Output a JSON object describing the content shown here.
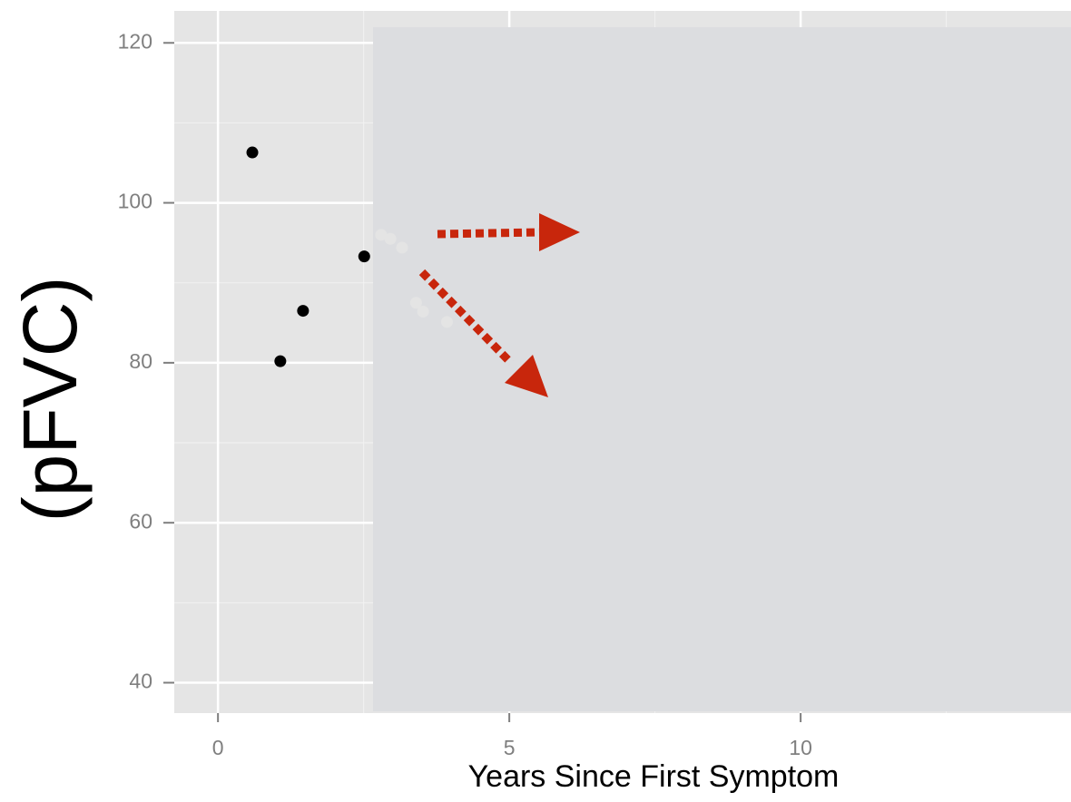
{
  "chart_data": {
    "type": "scatter",
    "x_label": "Years Since First Symptom",
    "y_label": "(pFVC)",
    "series": [
      {
        "color": "#000000",
        "x": [
          0.59,
          1.07,
          1.46,
          2.51
        ],
        "values": [
          106.3,
          80.2,
          86.5,
          93.3
        ]
      },
      {
        "color": "#e4e4e4",
        "x": [
          2.8,
          2.96,
          3.16,
          3.4,
          3.52,
          3.93
        ],
        "values": [
          96.0,
          95.5,
          94.4,
          87.5,
          86.4,
          85.1
        ]
      }
    ],
    "xlim": [
      -0.75,
      14.64
    ],
    "ylim": [
      36.2,
      124
    ],
    "xticks": [
      0,
      5,
      10
    ],
    "yticks": [
      40,
      60,
      80,
      100,
      120
    ],
    "grid": true
  }
}
